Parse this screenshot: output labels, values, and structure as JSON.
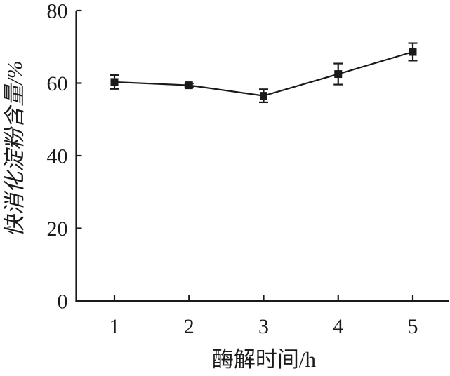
{
  "figure": {
    "background": "#ffffff",
    "ink_color": "#1a1a1a"
  },
  "chart_data": {
    "type": "line",
    "title": "",
    "xlabel": "酶解时间/h",
    "ylabel": "快消化淀粉含量/%",
    "x": [
      1,
      2,
      3,
      4,
      5
    ],
    "series": [
      {
        "name": "快消化淀粉含量",
        "values": [
          60.3,
          59.4,
          56.5,
          62.5,
          68.6
        ],
        "errors": [
          1.9,
          0.5,
          1.8,
          2.9,
          2.4
        ],
        "marker": "filled-square",
        "color": "#1a1a1a"
      }
    ],
    "xticks": [
      1,
      2,
      3,
      4,
      5
    ],
    "yticks": [
      0,
      20,
      40,
      60,
      80
    ],
    "xlim": [
      0.48,
      5.5
    ],
    "ylim": [
      0,
      80
    ],
    "grid": false,
    "legend": "none",
    "error_bars": true,
    "axes_style": "left-bottom-spines-inward-ticks"
  }
}
